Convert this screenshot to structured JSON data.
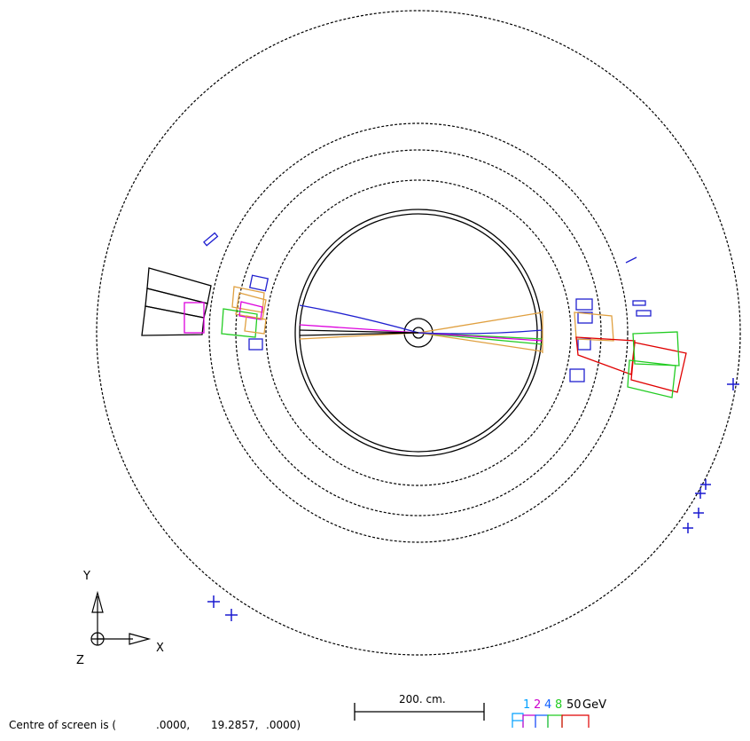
{
  "axes": {
    "y_label": "Y",
    "x_label": "X",
    "z_label": "Z"
  },
  "centre_info": {
    "prefix": "Centre of screen is (",
    "x": ".0000,",
    "y": "19.2857,",
    "z": ".0000)"
  },
  "scale_bar": {
    "label": "200. cm."
  },
  "energy_key": {
    "values": [
      "1",
      "2",
      "4",
      "8",
      "50"
    ],
    "unit": "GeV",
    "colors": [
      "#00a0ff",
      "#cc00cc",
      "#1060ff",
      "#22cc22",
      "#e00000"
    ]
  },
  "colors": {
    "detector": "#000000",
    "track_orange": "#e0a040",
    "track_green": "#22cc22",
    "track_magenta": "#dd00dd",
    "track_blue": "#2020d0",
    "cluster_red": "#e00000",
    "cluster_black": "#000000",
    "hit_blue": "#1a1ad0"
  },
  "icons": [
    "axis-triad-icon",
    "z-axis-circle-cross-icon"
  ]
}
